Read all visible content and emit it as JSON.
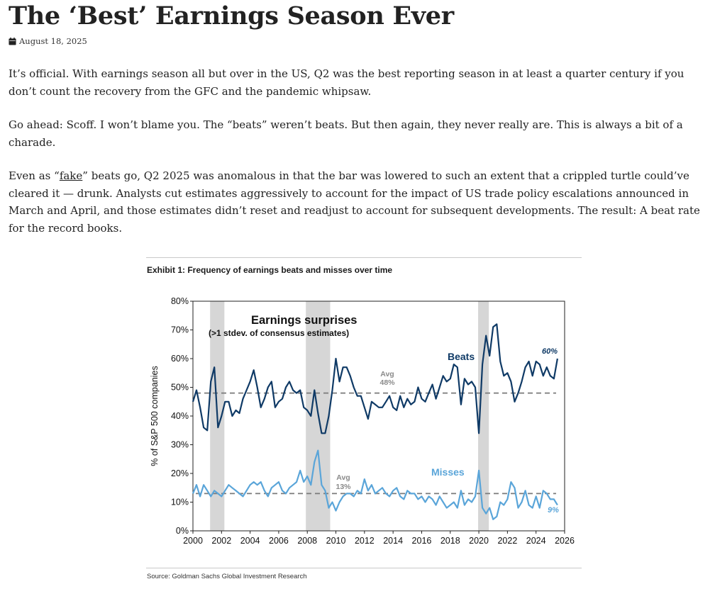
{
  "article": {
    "title": "The ‘Best’ Earnings Season Ever",
    "date": "August 18, 2025",
    "date_icon": "calendar-icon",
    "paragraphs": {
      "p1": "It’s official. With earnings season all but over in the US, Q2 was the best reporting season in at least a quarter century if you don’t count the recovery from the GFC and the pandemic whipsaw.",
      "p2": "Go ahead: Scoff. I won’t blame you. The “beats” weren’t beats. But then again, they never really are. This is always a bit of a charade.",
      "p3_before": "Even as “",
      "p3_link": "fake",
      "p3_after": "” beats go, Q2 2025 was anomalous in that the bar was lowered to such an extent that a crippled turtle could’ve cleared it — drunk. Analysts cut estimates aggressively to account for the impact of US trade policy escalations announced in March and April, and those estimates didn’t reset and readjust to account for subsequent developments. The result: A beat rate for the record books."
    }
  },
  "figure": {
    "exhibit_title": "Exhibit 1: Frequency of earnings beats and misses over time",
    "source": "Source: Goldman Sachs Global Investment Research"
  },
  "chart_data": {
    "type": "line",
    "title": "Earnings surprises",
    "subtitle": "(>1 stdev. of consensus estimates)",
    "ylabel": "% of S&P 500 companies",
    "xlabel": "",
    "xlim": [
      2000,
      2026
    ],
    "ylim": [
      0,
      80
    ],
    "x_ticks": [
      "2000",
      "2002",
      "2004",
      "2006",
      "2008",
      "2010",
      "2012",
      "2014",
      "2016",
      "2018",
      "2020",
      "2022",
      "2024",
      "2026"
    ],
    "y_ticks": [
      "0%",
      "10%",
      "20%",
      "30%",
      "40%",
      "50%",
      "60%",
      "70%",
      "80%"
    ],
    "grid": false,
    "legend": "labels on chart",
    "shaded_periods": [
      [
        2001.2,
        2002.2
      ],
      [
        2007.9,
        2009.6
      ],
      [
        2019.95,
        2020.7
      ]
    ],
    "averages": [
      {
        "series": "Beats",
        "value": 48,
        "label": "Avg",
        "value_label": "48%"
      },
      {
        "series": "Misses",
        "value": 13,
        "label": "Avg",
        "value_label": "13%"
      }
    ],
    "end_labels": [
      {
        "series": "Beats",
        "text": "60%"
      },
      {
        "series": "Misses",
        "text": "9%"
      }
    ],
    "colors": {
      "beats": "#0f3a66",
      "misses": "#5aa5d9",
      "avg_line": "#7a7a7a",
      "shade": "#d6d6d6"
    },
    "series": [
      {
        "name": "Beats",
        "x": [
          2000.0,
          2000.25,
          2000.5,
          2000.75,
          2001.0,
          2001.25,
          2001.5,
          2001.75,
          2002.0,
          2002.25,
          2002.5,
          2002.75,
          2003.0,
          2003.25,
          2003.5,
          2003.75,
          2004.0,
          2004.25,
          2004.5,
          2004.75,
          2005.0,
          2005.25,
          2005.5,
          2005.75,
          2006.0,
          2006.25,
          2006.5,
          2006.75,
          2007.0,
          2007.25,
          2007.5,
          2007.75,
          2008.0,
          2008.25,
          2008.5,
          2008.75,
          2009.0,
          2009.25,
          2009.5,
          2009.75,
          2010.0,
          2010.25,
          2010.5,
          2010.75,
          2011.0,
          2011.25,
          2011.5,
          2011.75,
          2012.0,
          2012.25,
          2012.5,
          2012.75,
          2013.0,
          2013.25,
          2013.5,
          2013.75,
          2014.0,
          2014.25,
          2014.5,
          2014.75,
          2015.0,
          2015.25,
          2015.5,
          2015.75,
          2016.0,
          2016.25,
          2016.5,
          2016.75,
          2017.0,
          2017.25,
          2017.5,
          2017.75,
          2018.0,
          2018.25,
          2018.5,
          2018.75,
          2019.0,
          2019.25,
          2019.5,
          2019.75,
          2020.0,
          2020.25,
          2020.5,
          2020.75,
          2021.0,
          2021.25,
          2021.5,
          2021.75,
          2022.0,
          2022.25,
          2022.5,
          2022.75,
          2023.0,
          2023.25,
          2023.5,
          2023.75,
          2024.0,
          2024.25,
          2024.5,
          2024.75,
          2025.0,
          2025.25,
          2025.5
        ],
        "values": [
          45,
          49,
          43,
          36,
          35,
          52,
          57,
          36,
          40,
          45,
          45,
          40,
          42,
          41,
          46,
          49,
          52,
          56,
          50,
          43,
          46,
          50,
          52,
          43,
          45,
          46,
          50,
          52,
          49,
          48,
          49,
          43,
          42,
          40,
          49,
          41,
          34,
          34,
          40,
          49,
          60,
          52,
          57,
          57,
          54,
          50,
          47,
          47,
          43,
          39,
          45,
          44,
          43,
          43,
          45,
          47,
          43,
          42,
          47,
          43,
          46,
          44,
          45,
          50,
          46,
          45,
          48,
          51,
          46,
          50,
          54,
          52,
          53,
          58,
          57,
          44,
          53,
          51,
          52,
          50,
          34,
          58,
          68,
          61,
          71,
          72,
          59,
          54,
          55,
          52,
          45,
          48,
          52,
          57,
          59,
          54,
          59,
          58,
          54,
          57,
          54,
          53,
          60
        ]
      },
      {
        "name": "Misses",
        "x": [
          2000.0,
          2000.25,
          2000.5,
          2000.75,
          2001.0,
          2001.25,
          2001.5,
          2001.75,
          2002.0,
          2002.25,
          2002.5,
          2002.75,
          2003.0,
          2003.25,
          2003.5,
          2003.75,
          2004.0,
          2004.25,
          2004.5,
          2004.75,
          2005.0,
          2005.25,
          2005.5,
          2005.75,
          2006.0,
          2006.25,
          2006.5,
          2006.75,
          2007.0,
          2007.25,
          2007.5,
          2007.75,
          2008.0,
          2008.25,
          2008.5,
          2008.75,
          2009.0,
          2009.25,
          2009.5,
          2009.75,
          2010.0,
          2010.25,
          2010.5,
          2010.75,
          2011.0,
          2011.25,
          2011.5,
          2011.75,
          2012.0,
          2012.25,
          2012.5,
          2012.75,
          2013.0,
          2013.25,
          2013.5,
          2013.75,
          2014.0,
          2014.25,
          2014.5,
          2014.75,
          2015.0,
          2015.25,
          2015.5,
          2015.75,
          2016.0,
          2016.25,
          2016.5,
          2016.75,
          2017.0,
          2017.25,
          2017.5,
          2017.75,
          2018.0,
          2018.25,
          2018.5,
          2018.75,
          2019.0,
          2019.25,
          2019.5,
          2019.75,
          2020.0,
          2020.25,
          2020.5,
          2020.75,
          2021.0,
          2021.25,
          2021.5,
          2021.75,
          2022.0,
          2022.25,
          2022.5,
          2022.75,
          2023.0,
          2023.25,
          2023.5,
          2023.75,
          2024.0,
          2024.25,
          2024.5,
          2024.75,
          2025.0,
          2025.25,
          2025.5
        ],
        "values": [
          13,
          16,
          12,
          16,
          14,
          12,
          14,
          13,
          12,
          14,
          16,
          15,
          14,
          13,
          12,
          14,
          16,
          17,
          16,
          17,
          14,
          12,
          15,
          16,
          17,
          14,
          13,
          15,
          16,
          17,
          21,
          17,
          19,
          16,
          24,
          28,
          16,
          14,
          8,
          10,
          7,
          10,
          12,
          13,
          13,
          12,
          14,
          13,
          18,
          14,
          16,
          13,
          14,
          15,
          13,
          12,
          14,
          15,
          12,
          11,
          14,
          13,
          13,
          11,
          12,
          10,
          12,
          11,
          9,
          12,
          10,
          8,
          9,
          10,
          8,
          14,
          9,
          11,
          10,
          12,
          21,
          8,
          6,
          8,
          4,
          5,
          10,
          9,
          11,
          17,
          15,
          8,
          10,
          14,
          9,
          8,
          12,
          8,
          14,
          13,
          11,
          11,
          9
        ]
      }
    ]
  }
}
